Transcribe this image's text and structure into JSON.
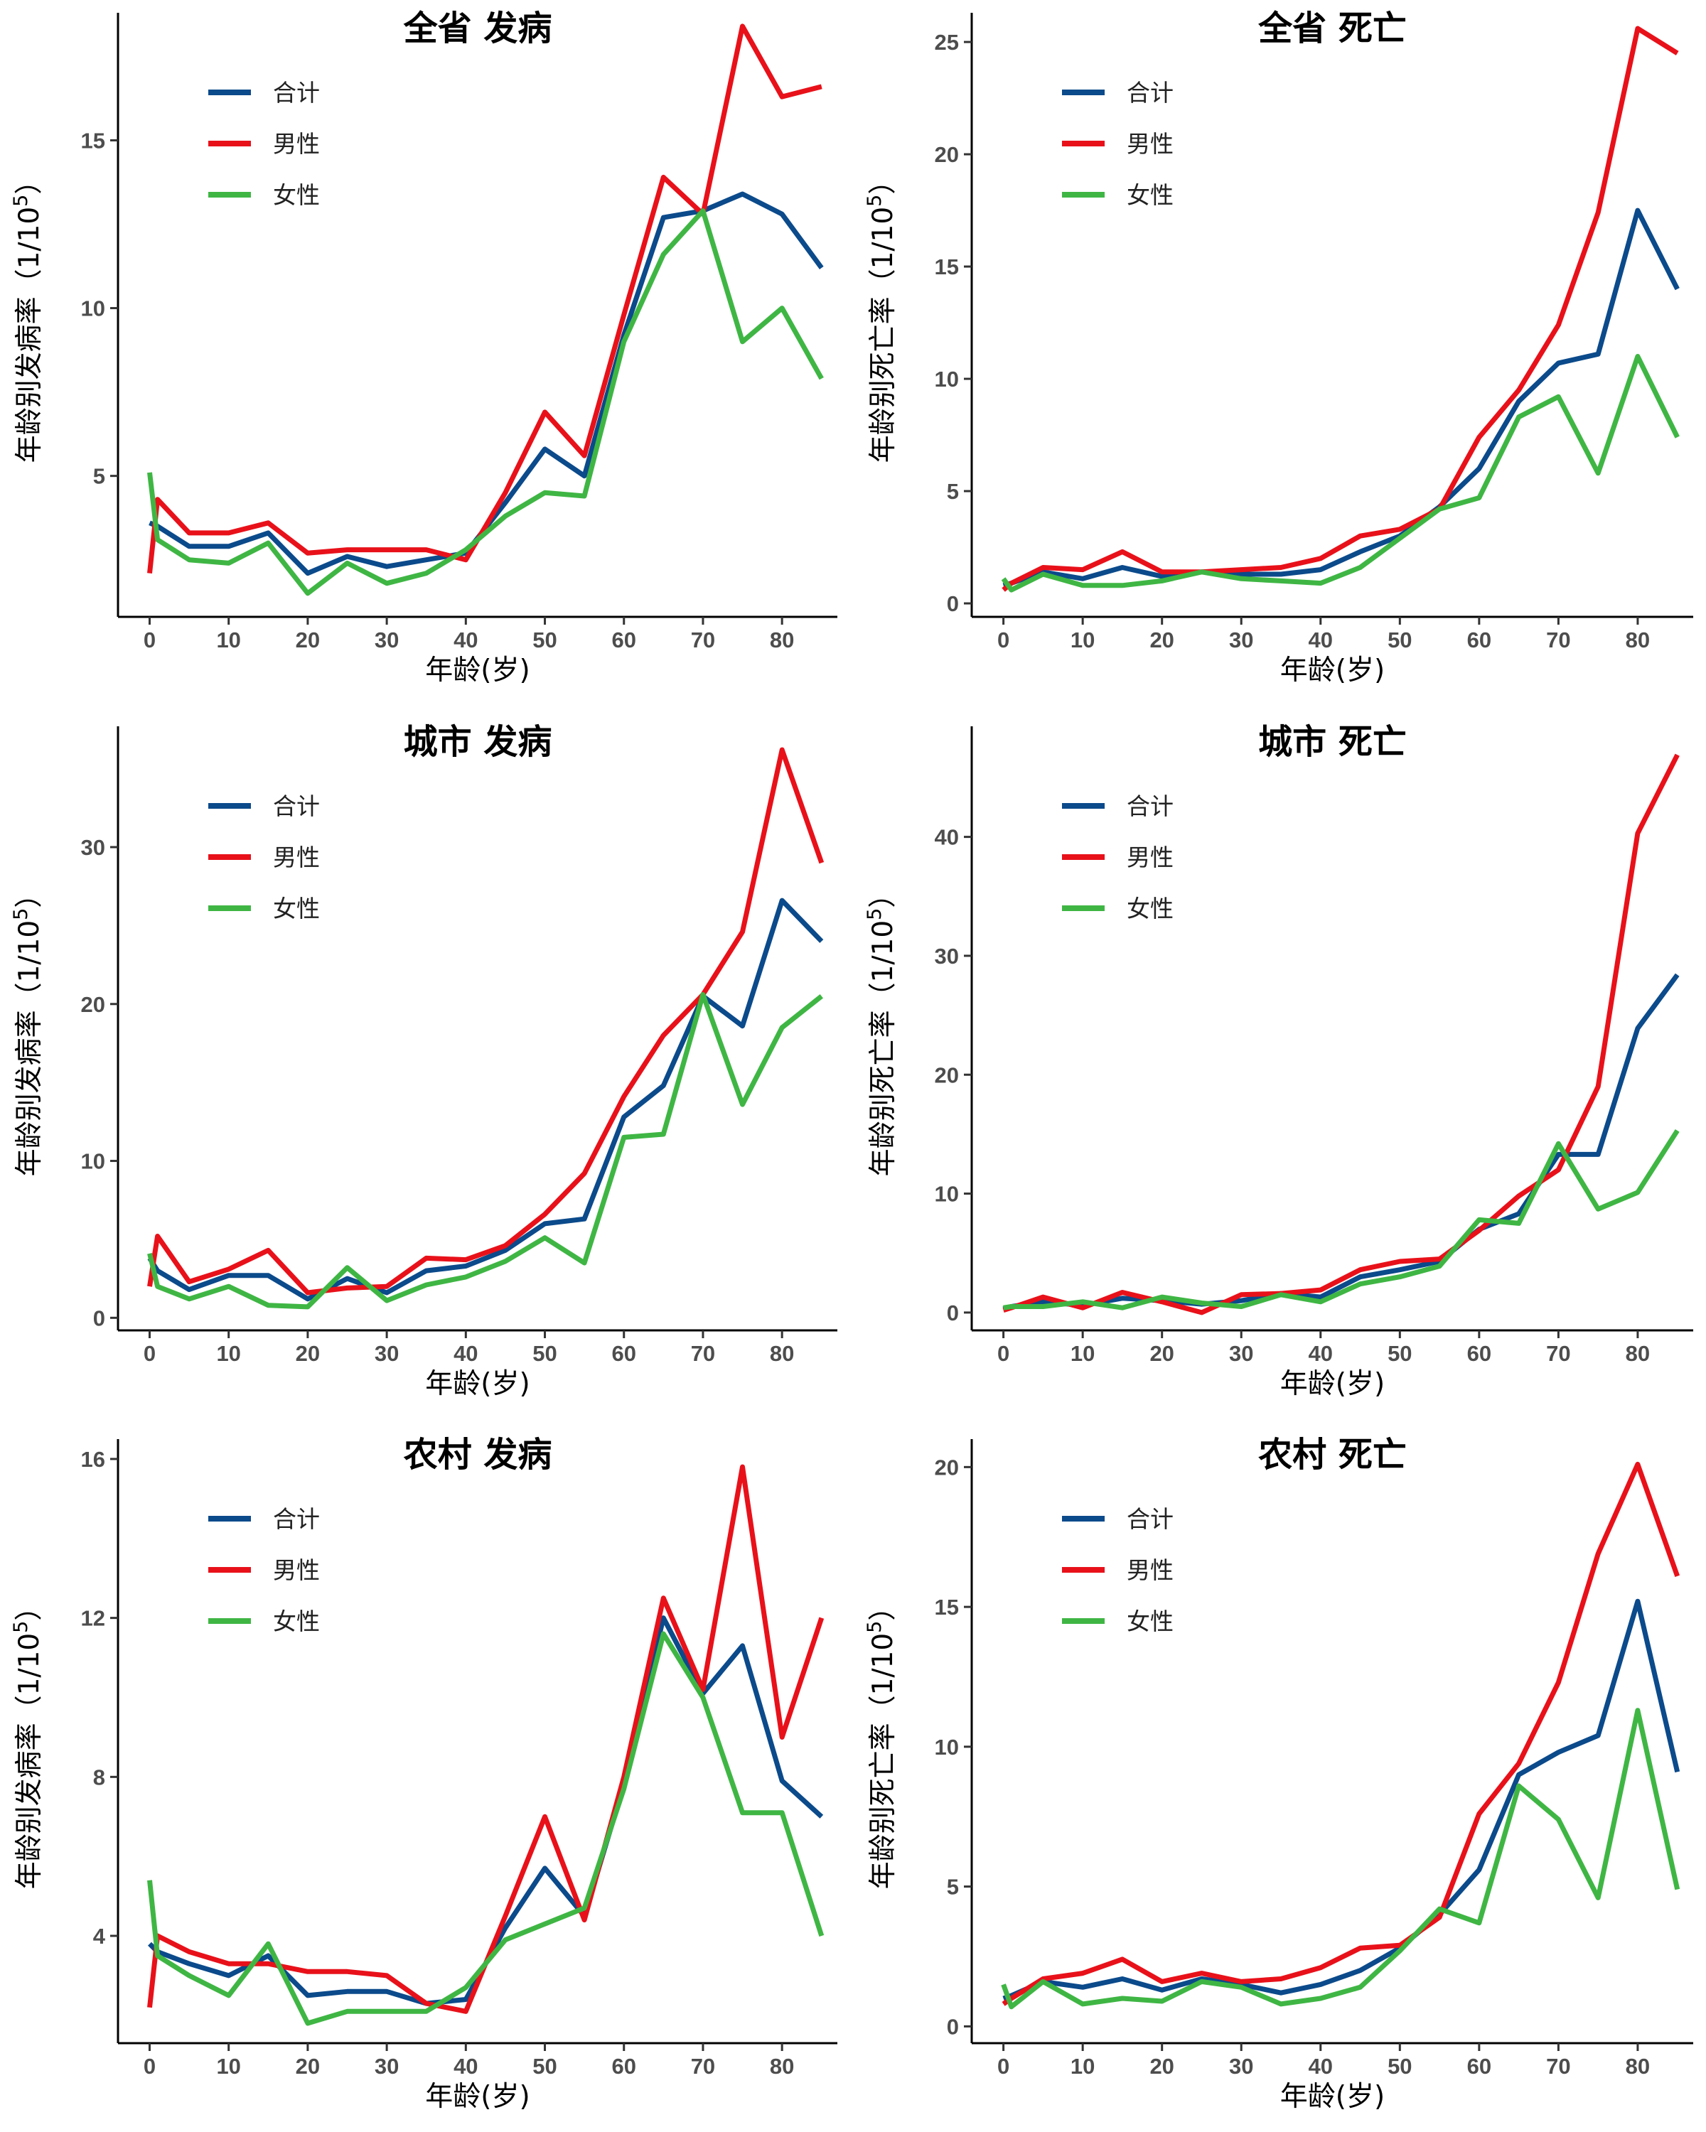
{
  "colors": {
    "total": "#0b4a8b",
    "male": "#e8111a",
    "female": "#3fb644"
  },
  "chart_data": [
    {
      "type": "line",
      "title": "全省 发病",
      "xlabel": "年龄(岁)",
      "ylabel": "年龄别发病率（1/10",
      "ylabel_sup": "5",
      "ylabel_close": "）",
      "xlim": [
        -4,
        87
      ],
      "ylim": [
        0.8,
        18.8
      ],
      "xticks": [
        0,
        10,
        20,
        30,
        40,
        50,
        60,
        70,
        80
      ],
      "yticks": [
        5,
        10,
        15
      ],
      "x": [
        0,
        1,
        5,
        10,
        15,
        20,
        25,
        30,
        35,
        40,
        45,
        50,
        55,
        60,
        65,
        70,
        75,
        80,
        85
      ],
      "series": [
        {
          "name": "合计",
          "color": "#0b4a8b",
          "values": [
            3.6,
            3.5,
            2.9,
            2.9,
            3.3,
            2.1,
            2.6,
            2.3,
            2.5,
            2.7,
            4.2,
            5.8,
            5.0,
            9.2,
            12.7,
            12.9,
            13.4,
            12.8,
            11.2
          ]
        },
        {
          "name": "男性",
          "color": "#e8111a",
          "values": [
            2.1,
            4.3,
            3.3,
            3.3,
            3.6,
            2.7,
            2.8,
            2.8,
            2.8,
            2.5,
            4.5,
            6.9,
            5.6,
            9.8,
            13.9,
            12.8,
            18.4,
            16.3,
            16.6
          ]
        },
        {
          "name": "女性",
          "color": "#3fb644",
          "values": [
            5.1,
            3.1,
            2.5,
            2.4,
            3.0,
            1.5,
            2.4,
            1.8,
            2.1,
            2.8,
            3.8,
            4.5,
            4.4,
            9.0,
            11.6,
            12.9,
            9.0,
            10.0,
            7.9
          ]
        }
      ]
    },
    {
      "type": "line",
      "title": "全省 死亡",
      "xlabel": "年龄(岁)",
      "ylabel": "年龄别死亡率（1/10",
      "ylabel_sup": "5",
      "ylabel_close": "）",
      "xlim": [
        -4,
        87
      ],
      "ylim": [
        -0.6,
        26.3
      ],
      "xticks": [
        0,
        10,
        20,
        30,
        40,
        50,
        60,
        70,
        80
      ],
      "yticks": [
        0,
        5,
        10,
        15,
        20,
        25
      ],
      "x": [
        0,
        1,
        5,
        10,
        15,
        20,
        25,
        30,
        35,
        40,
        45,
        50,
        55,
        60,
        65,
        70,
        75,
        80,
        85
      ],
      "series": [
        {
          "name": "合计",
          "color": "#0b4a8b",
          "values": [
            0.8,
            0.9,
            1.4,
            1.1,
            1.6,
            1.2,
            1.4,
            1.3,
            1.3,
            1.5,
            2.3,
            3.0,
            4.3,
            6.0,
            9.0,
            10.7,
            11.1,
            17.5,
            14.0
          ]
        },
        {
          "name": "男性",
          "color": "#e8111a",
          "values": [
            0.6,
            0.9,
            1.6,
            1.5,
            2.3,
            1.4,
            1.4,
            1.5,
            1.6,
            2.0,
            3.0,
            3.3,
            4.2,
            7.4,
            9.5,
            12.4,
            17.4,
            25.6,
            24.5
          ]
        },
        {
          "name": "女性",
          "color": "#3fb644",
          "values": [
            1.1,
            0.6,
            1.3,
            0.8,
            0.8,
            1.0,
            1.4,
            1.1,
            1.0,
            0.9,
            1.6,
            2.9,
            4.2,
            4.7,
            8.3,
            9.2,
            5.8,
            11.0,
            7.4
          ]
        }
      ]
    },
    {
      "type": "line",
      "title": "城市 发病",
      "xlabel": "年龄(岁)",
      "ylabel": "年龄别发病率（1/10",
      "ylabel_sup": "5",
      "ylabel_close": "）",
      "xlim": [
        -4,
        87
      ],
      "ylim": [
        -0.8,
        37.7
      ],
      "xticks": [
        0,
        10,
        20,
        30,
        40,
        50,
        60,
        70,
        80
      ],
      "yticks": [
        0,
        10,
        20,
        30
      ],
      "x": [
        0,
        1,
        5,
        10,
        15,
        20,
        25,
        30,
        35,
        40,
        45,
        50,
        55,
        60,
        65,
        70,
        75,
        80,
        85
      ],
      "series": [
        {
          "name": "合计",
          "color": "#0b4a8b",
          "values": [
            3.8,
            3.0,
            1.8,
            2.7,
            2.7,
            1.2,
            2.5,
            1.6,
            3.0,
            3.3,
            4.3,
            6.0,
            6.3,
            12.8,
            14.8,
            20.5,
            18.6,
            26.6,
            24.0
          ]
        },
        {
          "name": "男性",
          "color": "#e8111a",
          "values": [
            2.0,
            5.2,
            2.3,
            3.1,
            4.3,
            1.6,
            1.9,
            2.0,
            3.8,
            3.7,
            4.6,
            6.6,
            9.2,
            14.1,
            18.0,
            20.6,
            24.6,
            36.2,
            29.0
          ]
        },
        {
          "name": "女性",
          "color": "#3fb644",
          "values": [
            4.1,
            2.0,
            1.2,
            2.0,
            0.8,
            0.7,
            3.2,
            1.1,
            2.1,
            2.6,
            3.6,
            5.1,
            3.5,
            11.5,
            11.7,
            20.6,
            13.6,
            18.5,
            20.5
          ]
        }
      ]
    },
    {
      "type": "line",
      "title": "城市 死亡",
      "xlabel": "年龄(岁)",
      "ylabel": "年龄别死亡率（1/10",
      "ylabel_sup": "5",
      "ylabel_close": "）",
      "xlim": [
        -4,
        87
      ],
      "ylim": [
        -1.5,
        49.3
      ],
      "xticks": [
        0,
        10,
        20,
        30,
        40,
        50,
        60,
        70,
        80
      ],
      "yticks": [
        0,
        10,
        20,
        30,
        40
      ],
      "x": [
        0,
        1,
        5,
        10,
        15,
        20,
        25,
        30,
        35,
        40,
        45,
        50,
        55,
        60,
        65,
        70,
        75,
        80,
        85
      ],
      "series": [
        {
          "name": "合计",
          "color": "#0b4a8b",
          "values": [
            0.3,
            0.5,
            0.9,
            0.6,
            1.2,
            1.0,
            0.7,
            1.0,
            1.6,
            1.3,
            3.0,
            3.6,
            4.3,
            7.0,
            8.3,
            13.3,
            13.3,
            23.9,
            28.4
          ]
        },
        {
          "name": "男性",
          "color": "#e8111a",
          "values": [
            0.2,
            0.4,
            1.3,
            0.4,
            1.7,
            0.9,
            0.0,
            1.5,
            1.6,
            1.9,
            3.6,
            4.3,
            4.5,
            6.9,
            9.8,
            12.0,
            19.0,
            40.3,
            46.9
          ]
        },
        {
          "name": "女性",
          "color": "#3fb644",
          "values": [
            0.4,
            0.5,
            0.5,
            0.9,
            0.4,
            1.3,
            0.8,
            0.5,
            1.5,
            0.9,
            2.4,
            3.0,
            3.9,
            7.8,
            7.5,
            14.2,
            8.7,
            10.1,
            15.3
          ]
        }
      ]
    },
    {
      "type": "line",
      "title": "农村 发病",
      "xlabel": "年龄(岁)",
      "ylabel": "年龄别发病率（1/10",
      "ylabel_sup": "5",
      "ylabel_close": "）",
      "xlim": [
        -4,
        87
      ],
      "ylim": [
        1.3,
        16.5
      ],
      "xticks": [
        0,
        10,
        20,
        30,
        40,
        50,
        60,
        70,
        80
      ],
      "yticks": [
        4,
        8,
        12,
        16
      ],
      "x": [
        0,
        1,
        5,
        10,
        15,
        20,
        25,
        30,
        35,
        40,
        45,
        50,
        55,
        60,
        65,
        70,
        75,
        80,
        85
      ],
      "series": [
        {
          "name": "合计",
          "color": "#0b4a8b",
          "values": [
            3.8,
            3.6,
            3.3,
            3.0,
            3.5,
            2.5,
            2.6,
            2.6,
            2.3,
            2.4,
            4.2,
            5.7,
            4.5,
            7.8,
            12.0,
            10.1,
            11.3,
            7.9,
            7.0
          ]
        },
        {
          "name": "男性",
          "color": "#e8111a",
          "values": [
            2.2,
            4.0,
            3.6,
            3.3,
            3.3,
            3.1,
            3.1,
            3.0,
            2.3,
            2.1,
            4.5,
            7.0,
            4.4,
            8.0,
            12.5,
            10.2,
            15.8,
            9.0,
            12.0
          ]
        },
        {
          "name": "女性",
          "color": "#3fb644",
          "values": [
            5.4,
            3.5,
            3.0,
            2.5,
            3.8,
            1.8,
            2.1,
            2.1,
            2.1,
            2.7,
            3.9,
            4.3,
            4.7,
            7.7,
            11.6,
            10.0,
            7.1,
            7.1,
            4.0
          ]
        }
      ]
    },
    {
      "type": "line",
      "title": "农村 死亡",
      "xlabel": "年龄(岁)",
      "ylabel": "年龄别死亡率（1/10",
      "ylabel_sup": "5",
      "ylabel_close": "）",
      "xlim": [
        -4,
        87
      ],
      "ylim": [
        -0.6,
        21.0
      ],
      "xticks": [
        0,
        10,
        20,
        30,
        40,
        50,
        60,
        70,
        80
      ],
      "yticks": [
        0,
        5,
        10,
        15,
        20
      ],
      "x": [
        0,
        1,
        5,
        10,
        15,
        20,
        25,
        30,
        35,
        40,
        45,
        50,
        55,
        60,
        65,
        70,
        75,
        80,
        85
      ],
      "series": [
        {
          "name": "合计",
          "color": "#0b4a8b",
          "values": [
            1.0,
            1.1,
            1.6,
            1.4,
            1.7,
            1.3,
            1.7,
            1.5,
            1.2,
            1.5,
            2.0,
            2.8,
            4.0,
            5.6,
            9.0,
            9.8,
            10.4,
            15.2,
            9.1
          ]
        },
        {
          "name": "男性",
          "color": "#e8111a",
          "values": [
            0.8,
            1.0,
            1.7,
            1.9,
            2.4,
            1.6,
            1.9,
            1.6,
            1.7,
            2.1,
            2.8,
            2.9,
            3.9,
            7.6,
            9.4,
            12.3,
            16.9,
            20.1,
            16.1
          ]
        },
        {
          "name": "女性",
          "color": "#3fb644",
          "values": [
            1.5,
            0.7,
            1.6,
            0.8,
            1.0,
            0.9,
            1.6,
            1.4,
            0.8,
            1.0,
            1.4,
            2.7,
            4.2,
            3.7,
            8.6,
            7.4,
            4.6,
            11.3,
            4.9
          ]
        }
      ]
    }
  ]
}
